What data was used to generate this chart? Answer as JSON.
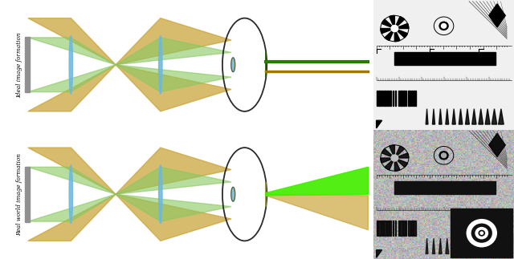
{
  "fig_width": 6.4,
  "fig_height": 3.23,
  "dpi": 100,
  "background": "#ffffff",
  "gold_color": "#C8A030",
  "gold_alpha": 0.7,
  "green_color": "#88C860",
  "green_alpha": 0.6,
  "blue_lens_color": "#70B8DC",
  "blue_lens_alpha": 0.88,
  "hologram_color": "#909090",
  "top_label": "Ideal image formation",
  "bottom_label": "Real world image formation",
  "beam_line_green": "#2A7A00",
  "beam_line_gold": "#A07800",
  "bright_green": "#44EE00"
}
